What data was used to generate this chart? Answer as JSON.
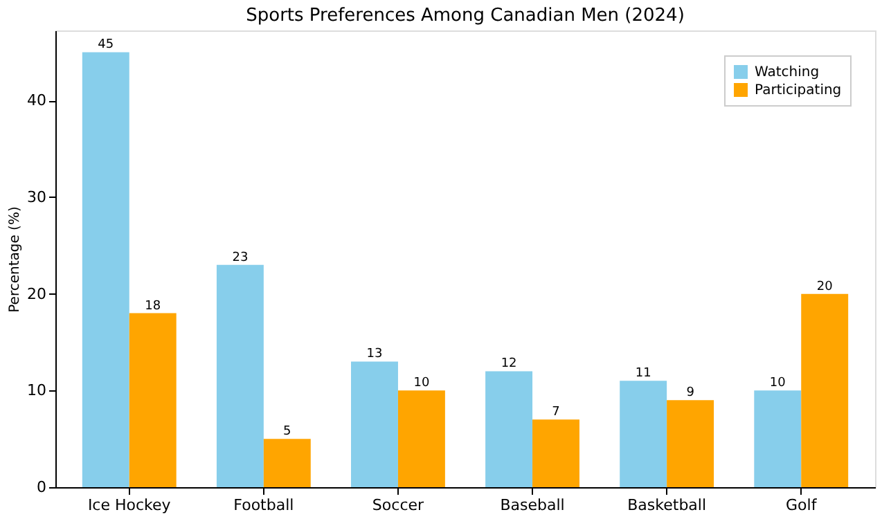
{
  "chart_data": {
    "type": "bar",
    "title": "Sports Preferences Among Canadian Men (2024)",
    "ylabel": "Percentage (%)",
    "categories": [
      "Ice Hockey",
      "Football",
      "Soccer",
      "Baseball",
      "Basketball",
      "Golf"
    ],
    "series": [
      {
        "name": "Watching",
        "color": "#87ceeb",
        "values": [
          45,
          23,
          13,
          12,
          11,
          10
        ]
      },
      {
        "name": "Participating",
        "color": "#ffa500",
        "values": [
          18,
          5,
          10,
          7,
          9,
          20
        ]
      }
    ],
    "ylim": [
      0,
      47.25
    ],
    "yticks": [
      0,
      10,
      20,
      30,
      40
    ],
    "grid": false,
    "legend": "top right",
    "data_labels": true
  }
}
